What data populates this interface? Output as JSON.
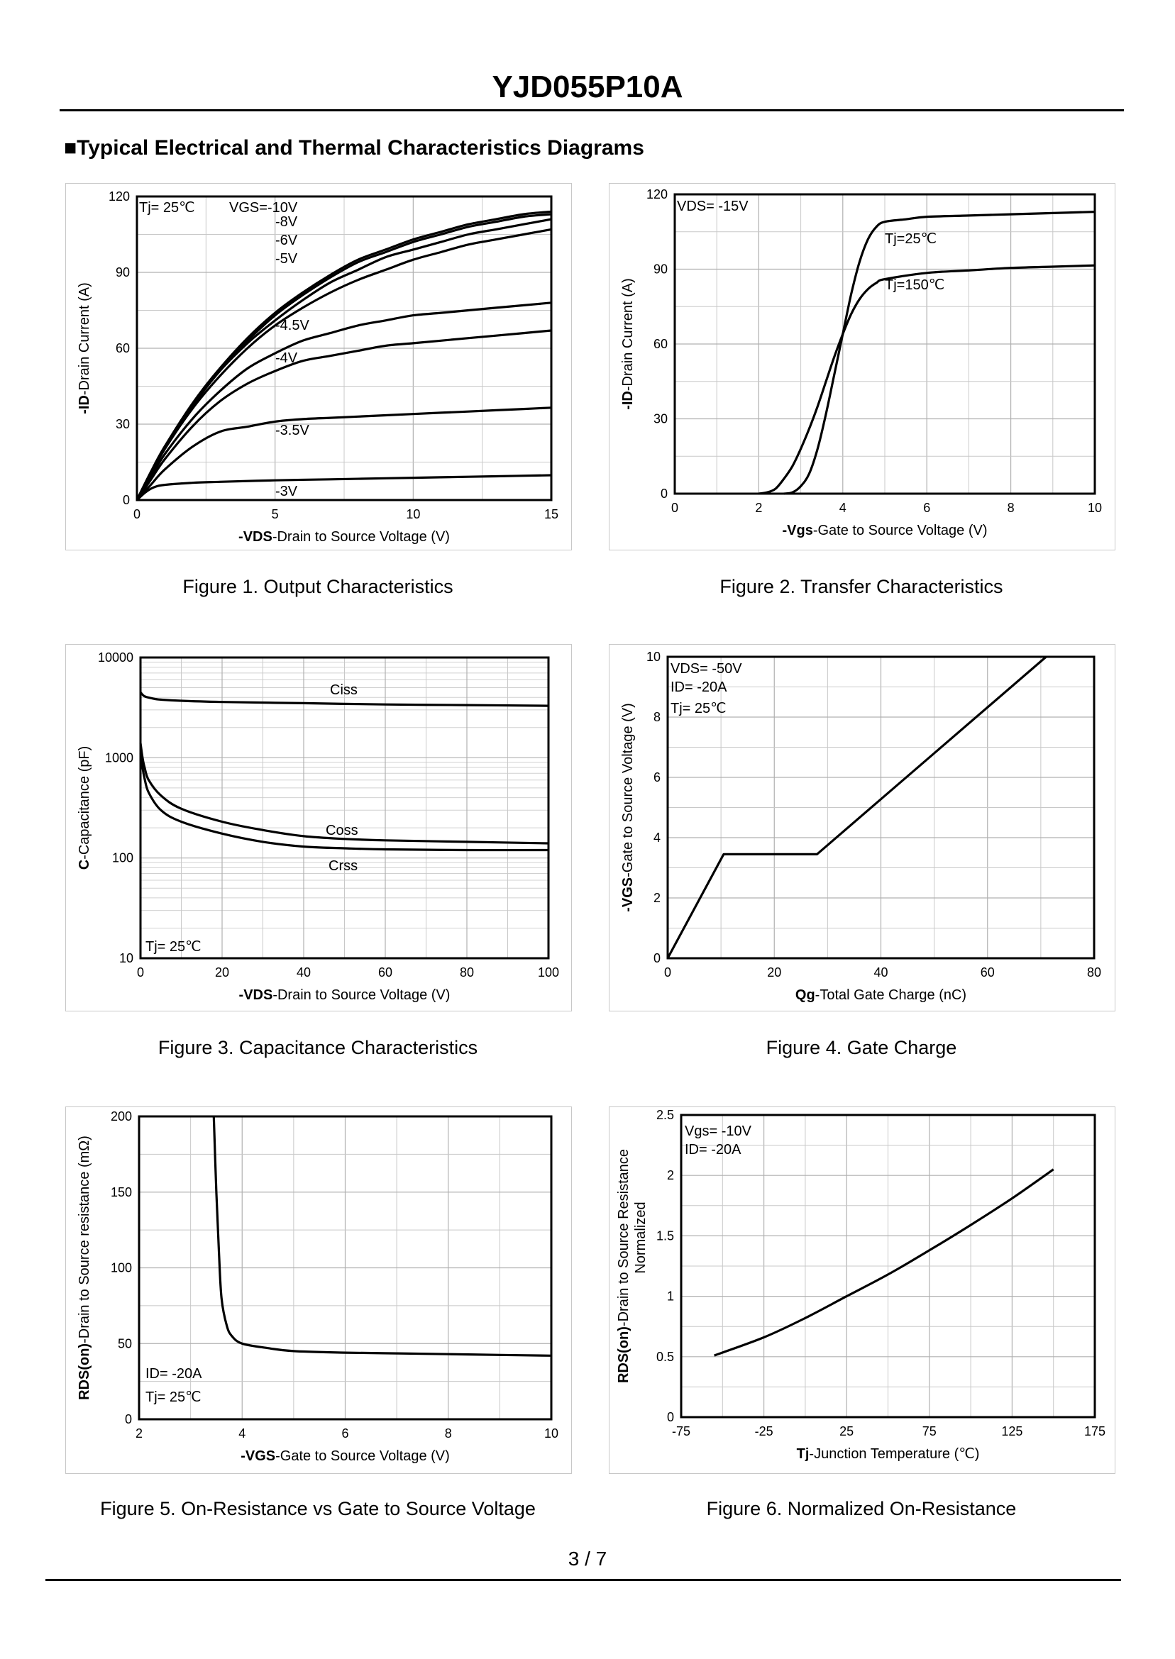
{
  "header": {
    "title": "YJD055P10A",
    "section": "■Typical Electrical and Thermal Characteristics Diagrams"
  },
  "footer": {
    "page": "3 / 7"
  },
  "charts": [
    {
      "caption": "Figure 1.  Output Characteristics",
      "xlabel_bold": "-VDS",
      "xlabel_rest": "-Drain to Source Voltage (V)",
      "ylabel_bold": "-ID",
      "ylabel_rest": "-Drain Current  (A)",
      "annotations": [
        "Tj= 25℃",
        "VGS=-10V",
        "-8V",
        "-6V",
        "-5V",
        "-4.5V",
        "-4V",
        "-3.5V",
        "-3V"
      ]
    },
    {
      "caption": "Figure 2.  Transfer Characteristics",
      "xlabel_bold": "-Vgs",
      "xlabel_rest": "-Gate to Source Voltage (V)",
      "ylabel_bold": "-ID",
      "ylabel_rest": "-Drain Current  (A)",
      "annotations": [
        "VDS= -15V",
        "Tj=25℃",
        "Tj=150℃"
      ]
    },
    {
      "caption": "Figure 3.  Capacitance Characteristics",
      "xlabel_bold": "-VDS",
      "xlabel_rest": "-Drain to Source Voltage (V)",
      "ylabel_bold": "C",
      "ylabel_rest": "-Capacitance (pF)",
      "annotations": [
        "Ciss",
        "Coss",
        "Crss",
        "Tj= 25℃"
      ]
    },
    {
      "caption": "Figure 4.  Gate Charge",
      "xlabel_bold": "Qg",
      "xlabel_rest": "-Total  Gate Charge (nC)",
      "ylabel_bold": "-VGS",
      "ylabel_rest": "-Gate to Source Voltage (V)",
      "annotations": [
        "VDS= -50V",
        "ID= -20A",
        "Tj= 25℃"
      ]
    },
    {
      "caption": "Figure 5.  On-Resistance vs Gate to Source Voltage",
      "xlabel_bold": "-VGS",
      "xlabel_rest": "-Gate to Source Voltage (V)",
      "ylabel_bold": "RDS(on)",
      "ylabel_rest": "-Drain to Source resistance (mΩ)",
      "annotations": [
        "ID= -20A",
        "Tj= 25℃"
      ]
    },
    {
      "caption": "Figure 6.  Normalized On-Resistance",
      "xlabel_bold": "Tj",
      "xlabel_rest": "-Junction  Temperature  (℃)",
      "ylabel_bold": "RDS(on)",
      "ylabel_rest": "-Drain to Source Resistance",
      "ylabel2": "Normalized",
      "annotations": [
        "Vgs= -10V",
        "ID= -20A"
      ]
    }
  ],
  "chart_data": [
    {
      "type": "line",
      "title": "Output Characteristics",
      "xlabel": "-VDS-Drain to Source Voltage (V)",
      "ylabel": "-ID-Drain Current  (A)",
      "xlim": [
        0,
        15
      ],
      "ylim": [
        0,
        120
      ],
      "xticks": [
        0,
        5,
        10,
        15
      ],
      "yticks": [
        0,
        30,
        60,
        90,
        120
      ],
      "series": [
        {
          "name": "-10V",
          "x": [
            0,
            0.5,
            1,
            2,
            3,
            4,
            5,
            6,
            7,
            8,
            9,
            10,
            11,
            12,
            13,
            14,
            15
          ],
          "y": [
            0,
            11,
            21,
            38,
            52,
            64,
            74,
            82,
            89,
            95,
            99,
            103,
            106,
            109,
            111,
            113,
            114
          ]
        },
        {
          "name": "-8V",
          "x": [
            0,
            0.5,
            1,
            2,
            3,
            4,
            5,
            6,
            7,
            8,
            9,
            10,
            11,
            12,
            13,
            14,
            15
          ],
          "y": [
            0,
            11,
            21,
            38,
            52,
            63,
            73,
            81,
            88,
            94,
            98,
            102,
            105,
            108,
            110,
            112,
            113
          ]
        },
        {
          "name": "-6V",
          "x": [
            0,
            0.5,
            1,
            2,
            3,
            4,
            5,
            6,
            7,
            8,
            9,
            10,
            11,
            12,
            13,
            14,
            15
          ],
          "y": [
            0,
            11,
            21,
            37,
            51,
            62,
            71,
            79,
            86,
            91,
            96,
            99,
            102,
            105,
            107,
            109,
            111
          ]
        },
        {
          "name": "-5V",
          "x": [
            0,
            0.5,
            1,
            2,
            3,
            4,
            5,
            6,
            7,
            8,
            9,
            10,
            11,
            12,
            13,
            14,
            15
          ],
          "y": [
            0,
            10,
            20,
            36,
            49,
            60,
            69,
            76,
            82,
            87,
            91,
            95,
            98,
            101,
            103,
            105,
            107
          ]
        },
        {
          "name": "-4.5V",
          "x": [
            0,
            0.5,
            1,
            2,
            3,
            4,
            5,
            6,
            7,
            8,
            9,
            10,
            11,
            12,
            13,
            14,
            15
          ],
          "y": [
            0,
            9,
            18,
            32,
            43,
            52,
            58,
            63,
            66,
            69,
            71,
            73,
            74,
            75,
            76,
            77,
            78
          ]
        },
        {
          "name": "-4V",
          "x": [
            0,
            0.5,
            1,
            2,
            3,
            4,
            5,
            6,
            7,
            8,
            9,
            10,
            11,
            12,
            13,
            14,
            15
          ],
          "y": [
            0,
            8,
            16,
            29,
            39,
            46,
            51,
            55,
            57,
            59,
            61,
            62,
            63,
            64,
            65,
            66,
            67
          ]
        },
        {
          "name": "-3.5V",
          "x": [
            0,
            0.5,
            1,
            2,
            3,
            4,
            5,
            6,
            7,
            8,
            9,
            10,
            11,
            12,
            13,
            14,
            15
          ],
          "y": [
            0,
            6,
            12,
            21,
            27,
            29,
            31,
            32,
            32.5,
            33,
            33.5,
            34,
            34.5,
            35,
            35.5,
            36,
            36.5
          ]
        },
        {
          "name": "-3V",
          "x": [
            0,
            0.3,
            0.6,
            1,
            2,
            3,
            5,
            7,
            9,
            11,
            13,
            15
          ],
          "y": [
            0,
            3,
            5,
            6,
            6.8,
            7.2,
            7.8,
            8.2,
            8.6,
            9,
            9.4,
            9.8
          ]
        }
      ]
    },
    {
      "type": "line",
      "title": "Transfer Characteristics",
      "xlabel": "-Vgs-Gate to Source Voltage (V)",
      "ylabel": "-ID-Drain Current  (A)",
      "xlim": [
        0,
        10
      ],
      "ylim": [
        0,
        120
      ],
      "xticks": [
        0,
        2,
        4,
        6,
        8,
        10
      ],
      "yticks": [
        0,
        30,
        60,
        90,
        120
      ],
      "series": [
        {
          "name": "Tj=25℃",
          "x": [
            2.6,
            2.8,
            3,
            3.2,
            3.4,
            3.6,
            3.8,
            4,
            4.2,
            4.4,
            4.6,
            4.8,
            5,
            5.5,
            6,
            7,
            8,
            9,
            10
          ],
          "y": [
            0,
            0.5,
            3,
            8,
            18,
            32,
            48,
            64,
            80,
            93,
            102,
            107,
            109,
            110,
            111,
            111.5,
            112,
            112.5,
            113
          ]
        },
        {
          "name": "Tj=150℃",
          "x": [
            2,
            2.2,
            2.4,
            2.6,
            2.8,
            3,
            3.2,
            3.4,
            3.6,
            3.8,
            4,
            4.2,
            4.4,
            4.6,
            4.8,
            5,
            6,
            7,
            8,
            9,
            10
          ],
          "y": [
            0,
            0.5,
            2,
            6,
            11,
            18,
            26,
            35,
            45,
            55,
            64,
            72,
            78,
            82,
            84.5,
            86,
            88.5,
            89.5,
            90.5,
            91,
            91.5
          ]
        }
      ]
    },
    {
      "type": "line",
      "title": "Capacitance Characteristics",
      "yscale": "log",
      "xlabel": "-VDS-Drain to Source Voltage (V)",
      "ylabel": "C-Capacitance (pF)",
      "xlim": [
        0,
        100
      ],
      "ylim": [
        10,
        10000
      ],
      "xticks": [
        0,
        20,
        40,
        60,
        80,
        100
      ],
      "yticks": [
        10,
        100,
        1000,
        10000
      ],
      "series": [
        {
          "name": "Ciss",
          "x": [
            0,
            1,
            3,
            5,
            10,
            20,
            40,
            60,
            80,
            100
          ],
          "y": [
            4500,
            4100,
            3900,
            3800,
            3700,
            3600,
            3500,
            3400,
            3350,
            3300
          ]
        },
        {
          "name": "Coss",
          "x": [
            0,
            0.5,
            1,
            2,
            5,
            10,
            20,
            30,
            40,
            50,
            60,
            80,
            100
          ],
          "y": [
            1400,
            1000,
            800,
            600,
            420,
            310,
            230,
            190,
            165,
            155,
            150,
            145,
            140
          ]
        },
        {
          "name": "Crss",
          "x": [
            0,
            0.5,
            1,
            2,
            5,
            10,
            20,
            30,
            40,
            50,
            60,
            80,
            100
          ],
          "y": [
            1100,
            800,
            620,
            450,
            300,
            230,
            175,
            145,
            130,
            125,
            122,
            120,
            120
          ]
        }
      ]
    },
    {
      "type": "line",
      "title": "Gate Charge",
      "xlabel": "Qg-Total  Gate Charge (nC)",
      "ylabel": "-VGS-Gate to Source Voltage (V)",
      "xlim": [
        0,
        80
      ],
      "ylim": [
        0,
        10
      ],
      "xticks": [
        0,
        20,
        40,
        60,
        80
      ],
      "yticks": [
        0,
        2,
        4,
        6,
        8,
        10
      ],
      "series": [
        {
          "name": "VGS",
          "x": [
            0,
            10.5,
            28,
            71
          ],
          "y": [
            0,
            3.45,
            3.45,
            10
          ]
        }
      ]
    },
    {
      "type": "line",
      "title": "On-Resistance vs Gate to Source Voltage",
      "xlabel": "-VGS-Gate to Source Voltage (V)",
      "ylabel": "RDS(on)-Drain to Source resistance (mΩ)",
      "xlim": [
        2,
        10
      ],
      "ylim": [
        0,
        200
      ],
      "xticks": [
        2,
        4,
        6,
        8,
        10
      ],
      "yticks": [
        0,
        50,
        100,
        150,
        200
      ],
      "series": [
        {
          "name": "RDS(on)",
          "x": [
            3.45,
            3.5,
            3.55,
            3.6,
            3.7,
            3.8,
            4,
            4.5,
            5,
            6,
            7,
            8,
            9,
            10
          ],
          "y": [
            200,
            150,
            110,
            80,
            62,
            55,
            50,
            47,
            45,
            44,
            43.5,
            43,
            42.5,
            42
          ]
        }
      ]
    },
    {
      "type": "line",
      "title": "Normalized On-Resistance",
      "xlabel": "Tj-Junction  Temperature  (℃)",
      "ylabel": "RDS(on)-Drain to Source Resistance Normalized",
      "xlim": [
        -75,
        175
      ],
      "ylim": [
        0,
        2.5
      ],
      "xticks": [
        -75,
        -25,
        25,
        75,
        125,
        175
      ],
      "yticks": [
        0,
        0.5,
        1,
        1.5,
        2,
        2.5
      ],
      "series": [
        {
          "name": "RDS(on) norm",
          "x": [
            -55,
            -25,
            0,
            25,
            50,
            75,
            100,
            125,
            150
          ],
          "y": [
            0.51,
            0.66,
            0.82,
            1,
            1.18,
            1.38,
            1.59,
            1.81,
            2.05
          ]
        }
      ]
    }
  ]
}
